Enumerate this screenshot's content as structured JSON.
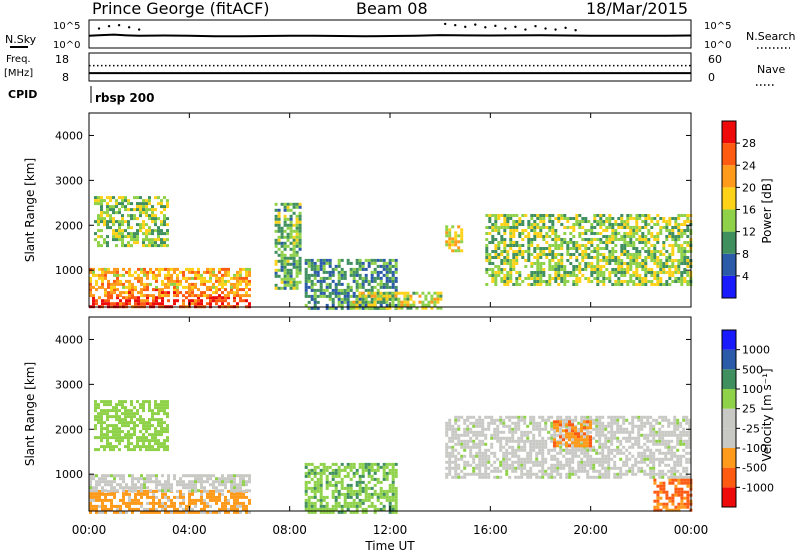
{
  "header": {
    "station": "Prince George (fitACF)",
    "beam": "Beam 08",
    "date": "18/Mar/2015",
    "cpid_text": "rbsp 200"
  },
  "left_labels": {
    "nsky": "N.Sky",
    "freq": "Freq.",
    "mhz": "[MHz]",
    "cpid": "CPID"
  },
  "right_labels": {
    "nsearch": "N.Search",
    "nave": "Nave"
  },
  "noise_ticks": {
    "left_top": "10^5",
    "left_bottom": "10^0",
    "right_top": "10^5",
    "right_bottom": "10^0"
  },
  "freq_ticks": {
    "left": [
      "18",
      "8"
    ],
    "right": [
      "60",
      "0"
    ]
  },
  "time_axis": {
    "label": "Time UT",
    "ticks": [
      "00:00",
      "04:00",
      "08:00",
      "12:00",
      "16:00",
      "20:00",
      "00:00"
    ],
    "hours": [
      0,
      4,
      8,
      12,
      16,
      20,
      24
    ]
  },
  "colors": {
    "power": [
      "#1a1aff",
      "#2a5aa8",
      "#3f8f5f",
      "#8fd24a",
      "#ffd21a",
      "#ff9a1a",
      "#ff5a12",
      "#ee0a0a"
    ],
    "velocity": [
      "#ee0a0a",
      "#ff5a12",
      "#ff9a1a",
      "#c8c8c4",
      "#c8c8c4",
      "#8fd24a",
      "#3f8f5f",
      "#2a5aa8",
      "#1a1aff"
    ],
    "ground": "#b4b4b4"
  },
  "chart_data": [
    {
      "type": "line",
      "name": "noise",
      "xlabel": "",
      "ylabel": "",
      "xlim": [
        0,
        24
      ],
      "y_scale": "log",
      "ylim": [
        1,
        100000
      ],
      "series": [
        {
          "name": "N.Sky",
          "x": [
            0,
            0.5,
            1,
            1.5,
            2,
            3,
            4,
            5,
            6,
            7,
            8,
            9,
            10,
            11,
            12,
            13,
            14,
            15,
            16,
            17,
            18,
            19,
            20,
            21,
            22,
            23,
            24
          ],
          "values": [
            150,
            200,
            250,
            180,
            160,
            170,
            150,
            130,
            130,
            140,
            150,
            150,
            140,
            130,
            140,
            160,
            200,
            180,
            170,
            180,
            190,
            170,
            160,
            150,
            150,
            160,
            170
          ]
        },
        {
          "name": "N.Search",
          "x": [
            0.4,
            0.8,
            1.2,
            1.6,
            2.0,
            14.2,
            14.6,
            15.0,
            15.4,
            15.8,
            16.2,
            16.6,
            17.0,
            17.4,
            17.8,
            18.2,
            18.6,
            19.0,
            19.4
          ],
          "values": [
            3000,
            8000,
            12000,
            5000,
            2000,
            20000,
            12000,
            6000,
            15000,
            5000,
            9000,
            3000,
            6000,
            2000,
            8000,
            3000,
            2000,
            4000,
            1500
          ]
        }
      ]
    },
    {
      "type": "line",
      "name": "frequency",
      "xlim": [
        0,
        24
      ],
      "ylim": [
        8,
        18
      ],
      "y2lim": [
        0,
        60
      ],
      "series": [
        {
          "name": "Freq.",
          "x": [
            0,
            24
          ],
          "values": [
            10.8,
            10.8
          ]
        },
        {
          "name": "Nave",
          "x": [
            0,
            24
          ],
          "values": [
            33,
            33
          ]
        }
      ]
    },
    {
      "type": "heatmap",
      "name": "power",
      "xlabel": "Time UT",
      "ylabel": "Slant Range [km]",
      "xlim": [
        0,
        24
      ],
      "ylim": [
        180,
        4500
      ],
      "y_ticks": [
        1000,
        2000,
        3000,
        4000
      ],
      "colorbar": {
        "label": "Power [dB]",
        "levels": [
          0,
          4,
          8,
          12,
          16,
          20,
          24,
          28,
          32
        ],
        "ticks": [
          "4",
          "8",
          "12",
          "16",
          "20",
          "24",
          "28"
        ]
      },
      "regions": [
        {
          "t": [
            0.0,
            6.4
          ],
          "r": [
            180,
            420
          ],
          "p": 28
        },
        {
          "t": [
            0.0,
            6.4
          ],
          "r": [
            420,
            600
          ],
          "p": 24
        },
        {
          "t": [
            0.0,
            6.4
          ],
          "r": [
            600,
            1050
          ],
          "p": 20
        },
        {
          "t": [
            0.2,
            3.1
          ],
          "r": [
            1550,
            2650
          ],
          "p": 14
        },
        {
          "t": [
            7.4,
            8.4
          ],
          "r": [
            600,
            2500
          ],
          "p": 12
        },
        {
          "t": [
            8.6,
            12.2
          ],
          "r": [
            180,
            1250
          ],
          "p": 10
        },
        {
          "t": [
            10.5,
            14.0
          ],
          "r": [
            180,
            520
          ],
          "p": 16
        },
        {
          "t": [
            14.2,
            14.9
          ],
          "r": [
            1400,
            2000
          ],
          "p": 18
        },
        {
          "t": [
            15.8,
            24.0
          ],
          "r": [
            650,
            2250
          ],
          "p": 14
        }
      ]
    },
    {
      "type": "heatmap",
      "name": "velocity",
      "xlabel": "Time UT",
      "ylabel": "Slant Range [km]",
      "xlim": [
        0,
        24
      ],
      "ylim": [
        180,
        4500
      ],
      "y_ticks": [
        1000,
        2000,
        3000,
        4000
      ],
      "colorbar": {
        "label": "Velocity [m s⁻¹]",
        "levels": [
          -2000,
          -1000,
          -500,
          -100,
          -25,
          25,
          100,
          500,
          1000,
          2000
        ],
        "ticks": [
          "-1000",
          "-500",
          "-100",
          "-25",
          "25",
          "100",
          "500",
          "1000"
        ]
      },
      "regions": [
        {
          "t": [
            0.0,
            6.4
          ],
          "r": [
            180,
            650
          ],
          "v": -150
        },
        {
          "t": [
            0.0,
            6.4
          ],
          "r": [
            650,
            1000
          ],
          "v": 0
        },
        {
          "t": [
            0.2,
            3.1
          ],
          "r": [
            1550,
            2650
          ],
          "v": 60
        },
        {
          "t": [
            8.6,
            12.2
          ],
          "r": [
            180,
            1250
          ],
          "v": 80
        },
        {
          "t": [
            14.2,
            24.0
          ],
          "r": [
            900,
            2300
          ],
          "v": 0
        },
        {
          "t": [
            18.5,
            20.0
          ],
          "r": [
            1600,
            2200
          ],
          "v": -400
        },
        {
          "t": [
            22.5,
            24.0
          ],
          "r": [
            200,
            900
          ],
          "v": -600
        }
      ]
    }
  ]
}
